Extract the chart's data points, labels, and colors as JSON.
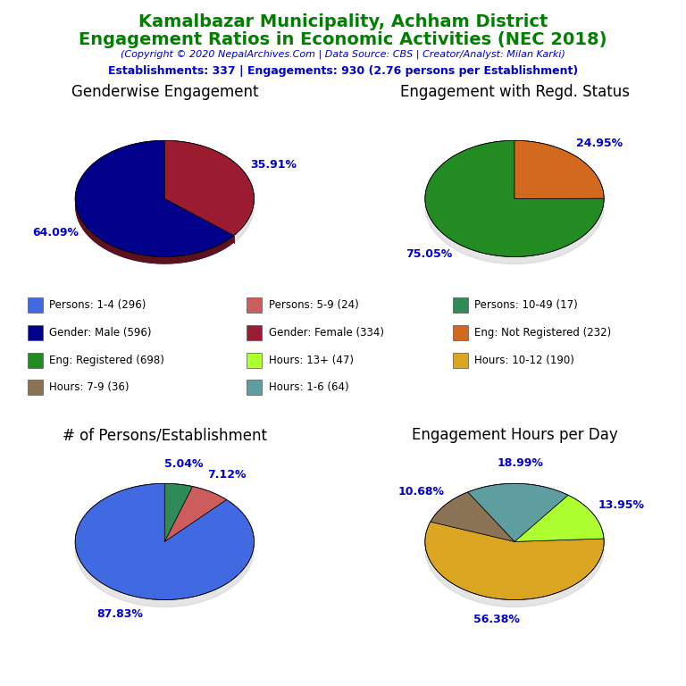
{
  "title_line1": "Kamalbazar Municipality, Achham District",
  "title_line2": "Engagement Ratios in Economic Activities (NEC 2018)",
  "subtitle": "(Copyright © 2020 NepalArchives.Com | Data Source: CBS | Creator/Analyst: Milan Karki)",
  "stats_line": "Establishments: 337 | Engagements: 930 (2.76 persons per Establishment)",
  "title_color": "#008000",
  "subtitle_color": "#0000CD",
  "stats_color": "#0000CD",
  "pie1_title": "Genderwise Engagement",
  "pie1_values": [
    64.09,
    35.91
  ],
  "pie1_colors": [
    "#00008B",
    "#9B1B30"
  ],
  "pie1_labels": [
    "64.09%",
    "35.91%"
  ],
  "pie1_startangle": 90,
  "pie2_title": "Engagement with Regd. Status",
  "pie2_values": [
    75.05,
    24.95
  ],
  "pie2_colors": [
    "#228B22",
    "#D2691E"
  ],
  "pie2_labels": [
    "75.05%",
    "24.95%"
  ],
  "pie2_startangle": 90,
  "pie3_title": "# of Persons/Establishment",
  "pie3_values": [
    87.83,
    7.12,
    5.04
  ],
  "pie3_colors": [
    "#4169E1",
    "#CD5C5C",
    "#2E8B57"
  ],
  "pie3_labels": [
    "87.83%",
    "7.12%",
    "5.04%"
  ],
  "pie3_startangle": 90,
  "pie4_title": "Engagement Hours per Day",
  "pie4_values": [
    56.38,
    13.95,
    18.99,
    10.68
  ],
  "pie4_colors": [
    "#DAA520",
    "#ADFF2F",
    "#5F9EA0",
    "#8B7355"
  ],
  "pie4_labels": [
    "56.38%",
    "13.95%",
    "18.99%",
    "10.68%"
  ],
  "pie4_startangle": 160,
  "legend_items": [
    {
      "label": "Persons: 1-4 (296)",
      "color": "#4169E1"
    },
    {
      "label": "Gender: Male (596)",
      "color": "#00008B"
    },
    {
      "label": "Eng: Registered (698)",
      "color": "#228B22"
    },
    {
      "label": "Hours: 7-9 (36)",
      "color": "#8B7355"
    },
    {
      "label": "Persons: 5-9 (24)",
      "color": "#CD5C5C"
    },
    {
      "label": "Gender: Female (334)",
      "color": "#9B1B30"
    },
    {
      "label": "Hours: 13+ (47)",
      "color": "#ADFF2F"
    },
    {
      "label": "Hours: 1-6 (64)",
      "color": "#5F9EA0"
    },
    {
      "label": "Persons: 10-49 (17)",
      "color": "#2E8B57"
    },
    {
      "label": "Eng: Not Registered (232)",
      "color": "#D2691E"
    },
    {
      "label": "Hours: 10-12 (190)",
      "color": "#DAA520"
    }
  ],
  "label_color": "#0000CD",
  "label_fontsize": 9,
  "pie_title_fontsize": 12
}
